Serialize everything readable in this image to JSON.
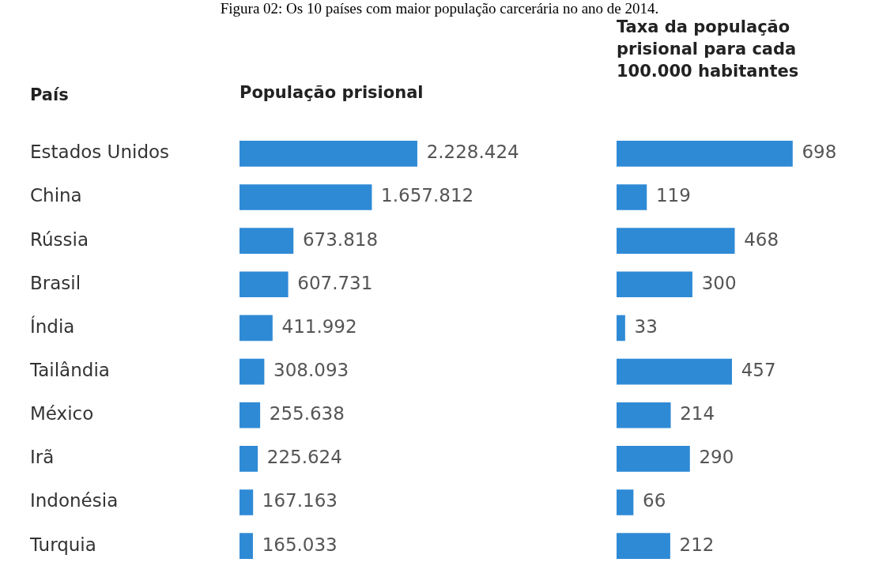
{
  "chart_data": [
    {
      "type": "bar",
      "orientation": "horizontal",
      "title": "Figura 02: Os 10 países com maior população carcerária no ano de 2014.",
      "subtitle": "População prisional",
      "ylabel": "País",
      "categories": [
        "Estados Unidos",
        "China",
        "Rússia",
        "Brasil",
        "Índia",
        "Tailândia",
        "México",
        "Irã",
        "Indonésia",
        "Turquia"
      ],
      "values": [
        2228424,
        1657812,
        673818,
        607731,
        411992,
        308093,
        255638,
        225624,
        167163,
        165033
      ],
      "value_labels": [
        "2.228.424",
        "1.657.812",
        "673.818",
        "607.731",
        "411.992",
        "308.093",
        "255.638",
        "225.624",
        "167.163",
        "165.033"
      ],
      "color": "#2f8ad6",
      "legend": false
    },
    {
      "type": "bar",
      "orientation": "horizontal",
      "title": "Taxa da população prisional para cada 100.000 habitantes",
      "categories": [
        null,
        null,
        null,
        null,
        null,
        null,
        null,
        null,
        null,
        null
      ],
      "values": [
        698,
        119,
        468,
        300,
        33,
        457,
        214,
        290,
        66,
        212
      ],
      "data_labels": true,
      "color": "#2f8ad6",
      "legend": false
    }
  ]
}
